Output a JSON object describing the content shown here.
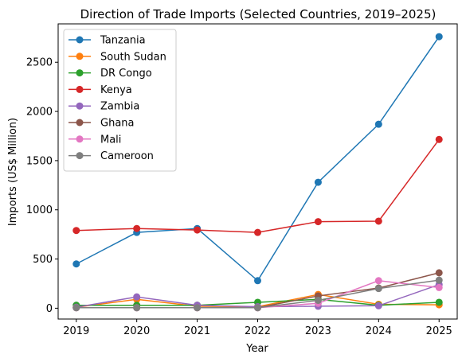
{
  "chart_data": {
    "type": "line",
    "title": "Direction of Trade Imports (Selected Countries, 2019–2025)",
    "xlabel": "Year",
    "ylabel": "Imports (US$ Million)",
    "x": [
      2019,
      2020,
      2021,
      2022,
      2023,
      2024,
      2025
    ],
    "ylim": [
      -110,
      2890
    ],
    "yticks": [
      0,
      500,
      1000,
      1500,
      2000,
      2500
    ],
    "grid": false,
    "legend_position": "top-left",
    "series": [
      {
        "name": "Tanzania",
        "color": "#1f77b4",
        "values": [
          450,
          770,
          810,
          280,
          1280,
          1870,
          2760
        ]
      },
      {
        "name": "South Sudan",
        "color": "#ff7f0e",
        "values": [
          10,
          90,
          20,
          15,
          140,
          40,
          35
        ]
      },
      {
        "name": "DR Congo",
        "color": "#2ca02c",
        "values": [
          30,
          30,
          30,
          60,
          90,
          30,
          60
        ]
      },
      {
        "name": "Kenya",
        "color": "#d62728",
        "values": [
          790,
          810,
          795,
          770,
          880,
          885,
          1715
        ]
      },
      {
        "name": "Zambia",
        "color": "#9467bd",
        "values": [
          10,
          115,
          30,
          15,
          20,
          25,
          240
        ]
      },
      {
        "name": "Ghana",
        "color": "#8c564b",
        "values": [
          5,
          5,
          5,
          5,
          125,
          205,
          360
        ]
      },
      {
        "name": "Mali",
        "color": "#e377c2",
        "values": [
          5,
          5,
          5,
          5,
          50,
          280,
          210
        ]
      },
      {
        "name": "Cameroon",
        "color": "#7f7f7f",
        "values": [
          5,
          5,
          5,
          5,
          80,
          200,
          285
        ]
      }
    ]
  }
}
